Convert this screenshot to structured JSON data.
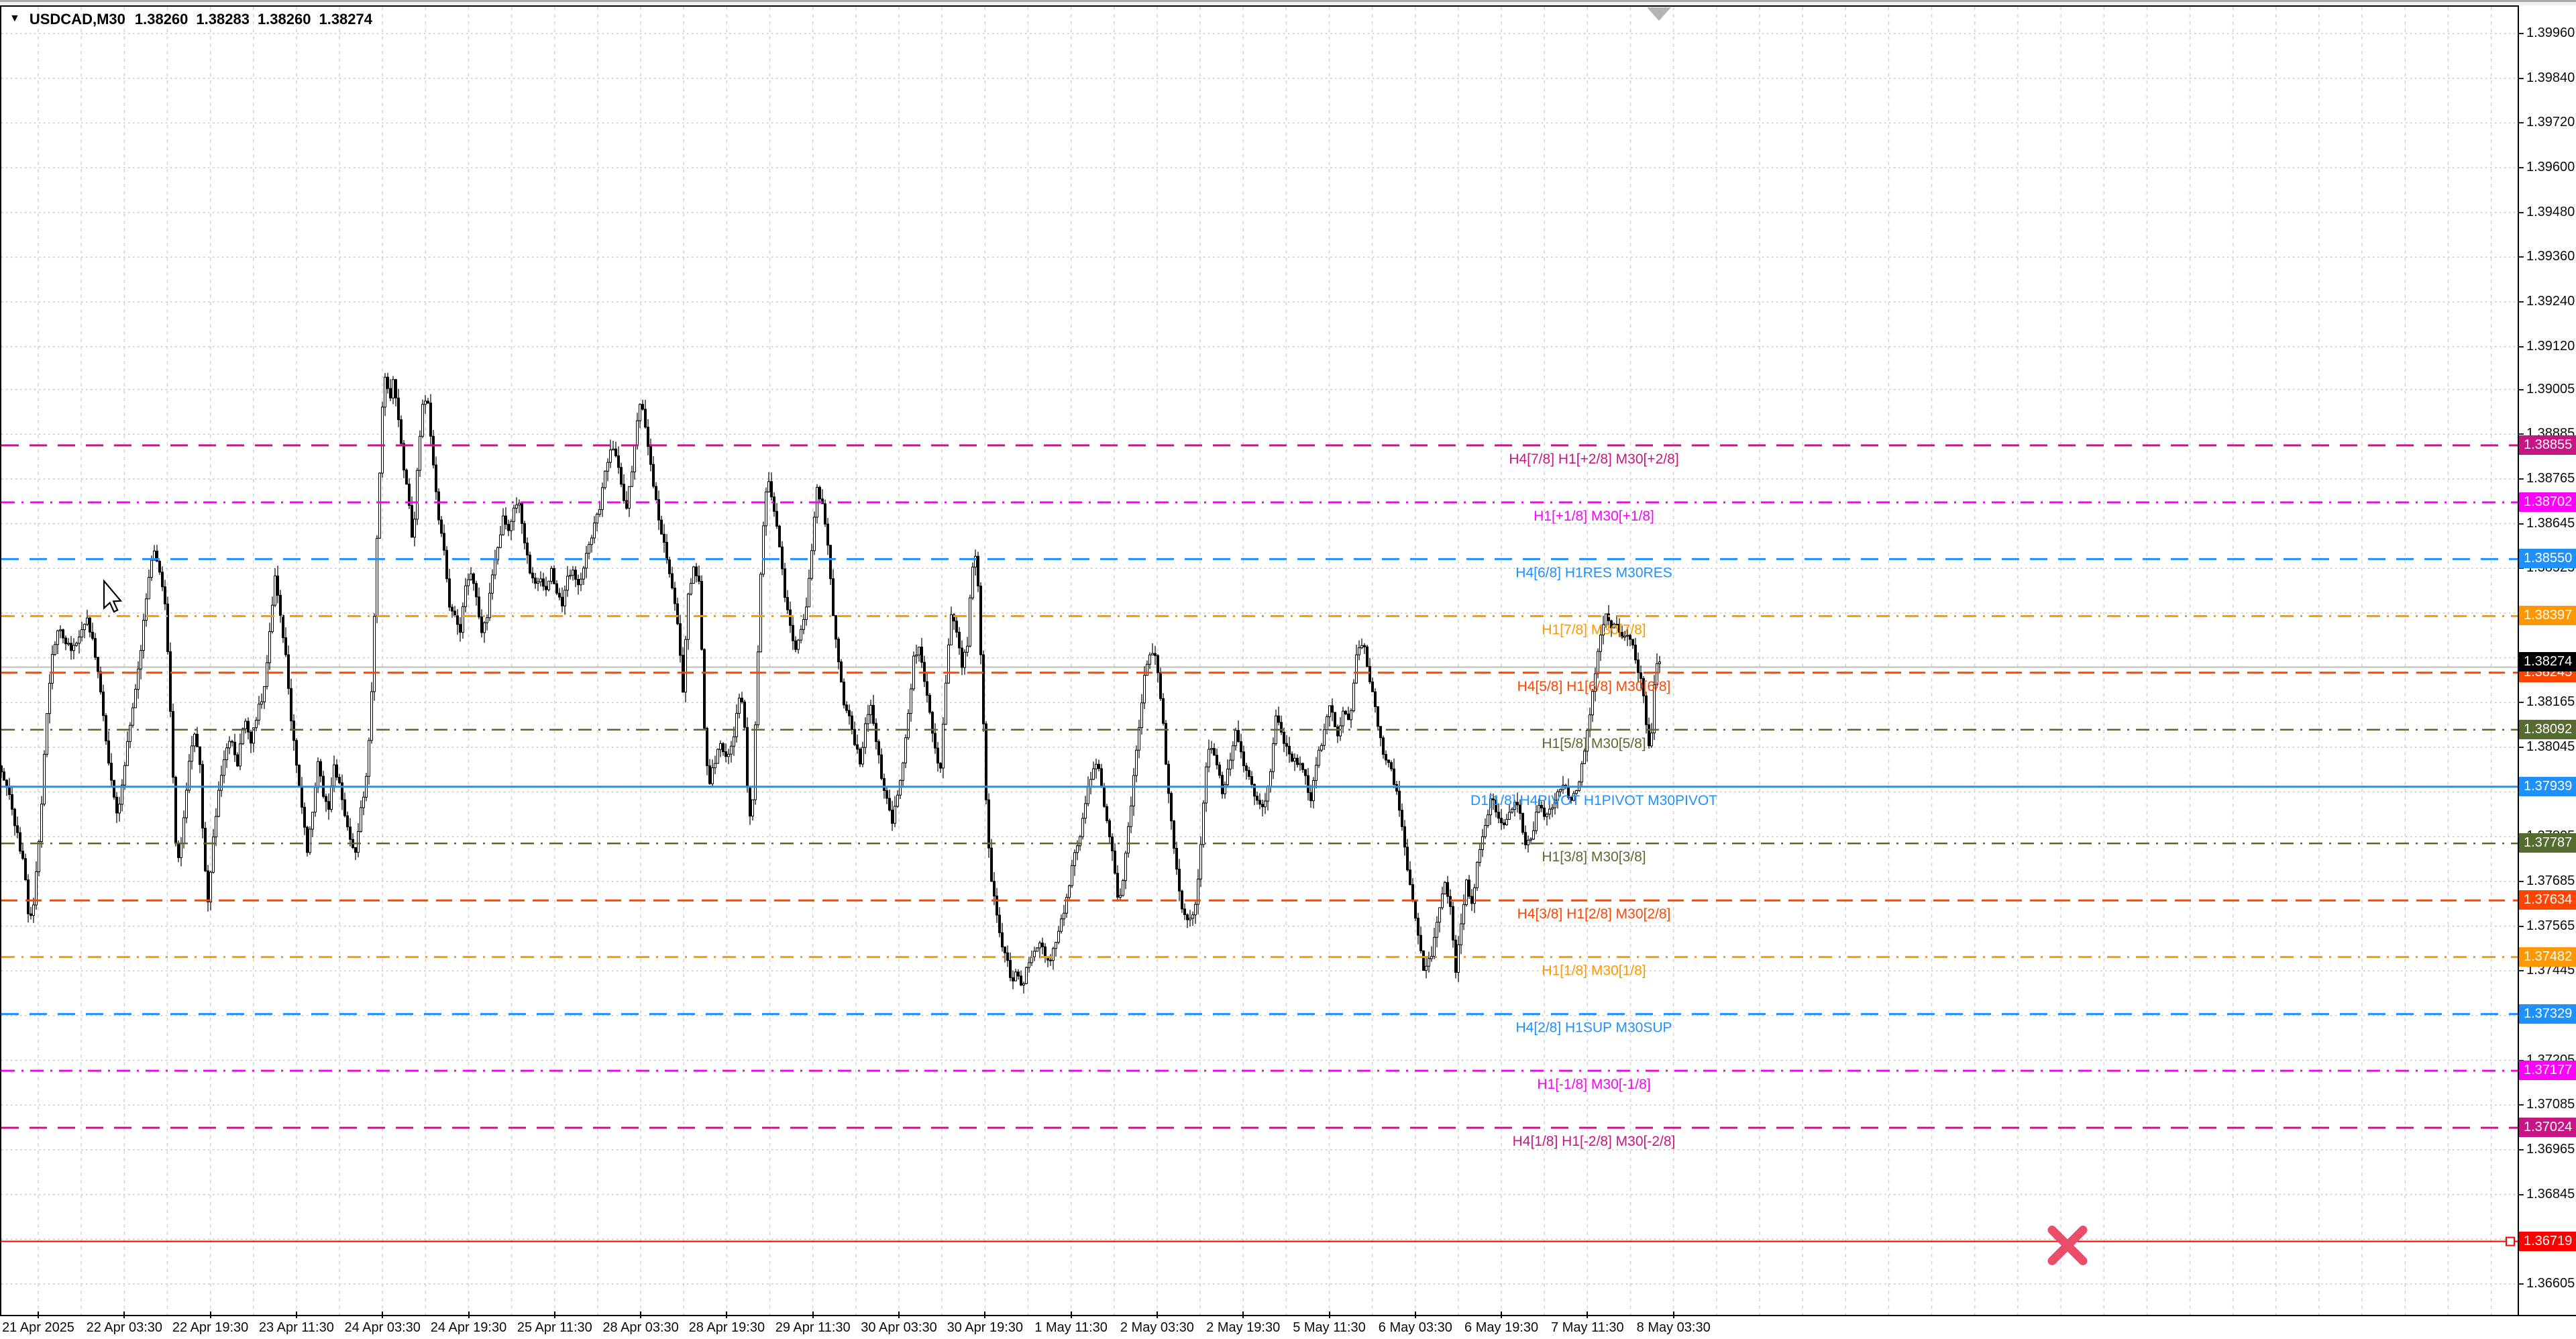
{
  "window": {
    "app": "MetaTrader chart",
    "background": "#ffffff"
  },
  "title": {
    "dropdown_icon": "▼",
    "symbol": "USDCAD,M30",
    "open": "1.38260",
    "high": "1.38283",
    "low": "1.38260",
    "close": "1.38274"
  },
  "price_axis": {
    "ticks": [
      "1.39960",
      "1.39840",
      "1.39720",
      "1.39600",
      "1.39480",
      "1.39360",
      "1.39240",
      "1.39120",
      "1.39005",
      "1.38885",
      "1.38765",
      "1.38645",
      "1.38525",
      "1.38405",
      "1.38285",
      "1.38165",
      "1.38045",
      "1.37925",
      "1.37805",
      "1.37685",
      "1.37565",
      "1.37445",
      "1.37325",
      "1.37205",
      "1.37085",
      "1.36965",
      "1.36845",
      "1.36725",
      "1.36605"
    ]
  },
  "time_axis": {
    "labels": [
      "21 Apr 2025",
      "22 Apr 03:30",
      "22 Apr 19:30",
      "23 Apr 11:30",
      "24 Apr 03:30",
      "24 Apr 19:30",
      "25 Apr 11:30",
      "28 Apr 03:30",
      "28 Apr 19:30",
      "29 Apr 11:30",
      "30 Apr 03:30",
      "30 Apr 19:30",
      "1 May 11:30",
      "2 May 03:30",
      "2 May 19:30",
      "5 May 11:30",
      "6 May 03:30",
      "6 May 19:30",
      "7 May 11:30",
      "8 May 03:30"
    ]
  },
  "current_price": {
    "value": "1.38274",
    "badge_color": "#000000"
  },
  "bid_line": {
    "price": "1.38260",
    "color": "#bdbdbd"
  },
  "levels": [
    {
      "label": "H4[7/8] H1[+2/8] M30[+2/8]",
      "price": "1.38855",
      "color": "#C71585",
      "style": "longdash",
      "width": 3
    },
    {
      "label": "H1[+1/8] M30[+1/8]",
      "price": "1.38702",
      "color": "#FF00FF",
      "style": "dashdot",
      "width": 3
    },
    {
      "label": "H4[6/8] H1RES M30RES",
      "price": "1.38550",
      "color": "#1E90FF",
      "style": "longdash",
      "width": 3
    },
    {
      "label": "H1[7/8] M30[7/8]",
      "price": "1.38397",
      "color": "#FF9800",
      "style": "dashdot",
      "width": 3
    },
    {
      "label": "H4[5/8] H1[6/8] M30[6/8]",
      "price": "1.38245",
      "color": "#FF4500",
      "style": "dash",
      "width": 3
    },
    {
      "label": "H1[5/8] M30[5/8]",
      "price": "1.38092",
      "color": "#556B2F",
      "style": "dashdot",
      "width": 2.5
    },
    {
      "label": "D1[1/8] H4PIVOT H1PIVOT M30PIVOT",
      "price": "1.37939",
      "color": "#1E90FF",
      "style": "solid",
      "width": 3
    },
    {
      "label": "H1[3/8] M30[3/8]",
      "price": "1.37787",
      "color": "#556B2F",
      "style": "dashdot",
      "width": 2.5
    },
    {
      "label": "H4[3/8] H1[2/8] M30[2/8]",
      "price": "1.37634",
      "color": "#FF4500",
      "style": "dash",
      "width": 3
    },
    {
      "label": "H1[1/8] M30[1/8]",
      "price": "1.37482",
      "color": "#FF9800",
      "style": "dashdot",
      "width": 3
    },
    {
      "label": "H4[2/8] H1SUP M30SUP",
      "price": "1.37329",
      "color": "#1E90FF",
      "style": "longdash",
      "width": 3
    },
    {
      "label": "H1[-1/8] M30[-1/8]",
      "price": "1.37177",
      "color": "#FF00FF",
      "style": "dashdot",
      "width": 3
    },
    {
      "label": "H4[1/8] H1[-2/8] M30[-2/8]",
      "price": "1.37024",
      "color": "#C71585",
      "style": "longdash",
      "width": 3
    }
  ],
  "sell_stop_line": {
    "price": "1.36719",
    "color": "#FF0000",
    "style": "solid",
    "width": 2,
    "handle": true,
    "marker": "cross",
    "marker_color": "#E94D67"
  },
  "shift_triangle": {
    "color": "#b4b4b4"
  },
  "colors": {
    "candle_up_fill": "#ffffff",
    "candle_down_fill": "#000000",
    "candle_outline": "#000000",
    "grid_h": "#c8c8c8",
    "grid_v": "#d4d4d4",
    "axis_text": "#0a0a0a",
    "frame": "#000000"
  },
  "chart_data": {
    "type": "candlestick",
    "symbol": "USDCAD",
    "timeframe": "M30",
    "title": "USDCAD,M30",
    "last_ohlc": {
      "open": 1.3826,
      "high": 1.38283,
      "low": 1.3826,
      "close": 1.38274
    },
    "x_range": [
      "21 Apr 2025",
      "8 May 03:30"
    ],
    "y_visible_range": [
      1.36478,
      1.4005
    ],
    "grid": true,
    "levels_prices": [
      1.38855,
      1.38702,
      1.3855,
      1.38397,
      1.38245,
      1.38092,
      1.37939,
      1.37787,
      1.37634,
      1.37482,
      1.37329,
      1.37177,
      1.37024,
      1.36719
    ],
    "price_path_anchors": [
      [
        2,
        1.37995
      ],
      [
        12,
        1.3794
      ],
      [
        22,
        1.3786
      ],
      [
        30,
        1.3779
      ],
      [
        38,
        1.3772
      ],
      [
        46,
        1.3757
      ],
      [
        52,
        1.3762
      ],
      [
        58,
        1.3775
      ],
      [
        64,
        1.379
      ],
      [
        72,
        1.3814
      ],
      [
        80,
        1.383
      ],
      [
        90,
        1.3836
      ],
      [
        100,
        1.3833
      ],
      [
        110,
        1.38305
      ],
      [
        120,
        1.3834
      ],
      [
        130,
        1.38395
      ],
      [
        140,
        1.3833
      ],
      [
        150,
        1.3823
      ],
      [
        160,
        1.3806
      ],
      [
        170,
        1.3792
      ],
      [
        178,
        1.3785
      ],
      [
        186,
        1.3798
      ],
      [
        194,
        1.3808
      ],
      [
        202,
        1.3817
      ],
      [
        212,
        1.383
      ],
      [
        222,
        1.3849
      ],
      [
        232,
        1.3857
      ],
      [
        242,
        1.3851
      ],
      [
        250,
        1.3839
      ],
      [
        257,
        1.3809
      ],
      [
        264,
        1.3779
      ],
      [
        270,
        1.3774
      ],
      [
        277,
        1.3788
      ],
      [
        285,
        1.3802
      ],
      [
        293,
        1.3808
      ],
      [
        300,
        1.38
      ],
      [
        306,
        1.3775
      ],
      [
        312,
        1.3763
      ],
      [
        318,
        1.3776
      ],
      [
        326,
        1.379
      ],
      [
        336,
        1.3801
      ],
      [
        346,
        1.3808
      ],
      [
        356,
        1.38
      ],
      [
        366,
        1.3812
      ],
      [
        376,
        1.3806
      ],
      [
        386,
        1.3814
      ],
      [
        396,
        1.382
      ],
      [
        404,
        1.3836
      ],
      [
        412,
        1.3851
      ],
      [
        420,
        1.384
      ],
      [
        428,
        1.3829
      ],
      [
        436,
        1.3812
      ],
      [
        444,
        1.38
      ],
      [
        452,
        1.3788
      ],
      [
        460,
        1.3777
      ],
      [
        468,
        1.3788
      ],
      [
        476,
        1.38
      ],
      [
        484,
        1.3792
      ],
      [
        492,
        1.3788
      ],
      [
        500,
        1.38
      ],
      [
        508,
        1.3794
      ],
      [
        516,
        1.3786
      ],
      [
        524,
        1.3779
      ],
      [
        532,
        1.3777
      ],
      [
        540,
        1.3788
      ],
      [
        548,
        1.3796
      ],
      [
        554,
        1.381
      ],
      [
        560,
        1.384
      ],
      [
        566,
        1.387
      ],
      [
        572,
        1.3895
      ],
      [
        577,
        1.3905
      ],
      [
        583,
        1.3898
      ],
      [
        589,
        1.3903
      ],
      [
        595,
        1.3895
      ],
      [
        602,
        1.3882
      ],
      [
        610,
        1.3873
      ],
      [
        618,
        1.3858
      ],
      [
        626,
        1.3885
      ],
      [
        633,
        1.3898
      ],
      [
        640,
        1.3896
      ],
      [
        648,
        1.388
      ],
      [
        656,
        1.3865
      ],
      [
        664,
        1.3858
      ],
      [
        672,
        1.3842
      ],
      [
        680,
        1.384
      ],
      [
        688,
        1.3836
      ],
      [
        696,
        1.3848
      ],
      [
        704,
        1.3852
      ],
      [
        712,
        1.3844
      ],
      [
        720,
        1.3836
      ],
      [
        728,
        1.384
      ],
      [
        736,
        1.385
      ],
      [
        744,
        1.3858
      ],
      [
        752,
        1.3866
      ],
      [
        760,
        1.3862
      ],
      [
        768,
        1.3868
      ],
      [
        776,
        1.387
      ],
      [
        784,
        1.386
      ],
      [
        792,
        1.3852
      ],
      [
        800,
        1.3848
      ],
      [
        808,
        1.385
      ],
      [
        816,
        1.3846
      ],
      [
        824,
        1.3852
      ],
      [
        832,
        1.3846
      ],
      [
        840,
        1.3842
      ],
      [
        848,
        1.385
      ],
      [
        856,
        1.3852
      ],
      [
        865,
        1.3848
      ],
      [
        875,
        1.3855
      ],
      [
        885,
        1.3862
      ],
      [
        895,
        1.3868
      ],
      [
        905,
        1.388
      ],
      [
        915,
        1.3886
      ],
      [
        925,
        1.3878
      ],
      [
        935,
        1.3868
      ],
      [
        945,
        1.388
      ],
      [
        952,
        1.3892
      ],
      [
        958,
        1.3898
      ],
      [
        965,
        1.389
      ],
      [
        972,
        1.388
      ],
      [
        980,
        1.387
      ],
      [
        988,
        1.3862
      ],
      [
        996,
        1.3855
      ],
      [
        1004,
        1.3848
      ],
      [
        1012,
        1.3838
      ],
      [
        1020,
        1.382
      ],
      [
        1028,
        1.3846
      ],
      [
        1036,
        1.3852
      ],
      [
        1044,
        1.385
      ],
      [
        1052,
        1.381
      ],
      [
        1058,
        1.3793
      ],
      [
        1066,
        1.38
      ],
      [
        1076,
        1.3805
      ],
      [
        1086,
        1.3802
      ],
      [
        1096,
        1.3808
      ],
      [
        1106,
        1.382
      ],
      [
        1112,
        1.381
      ],
      [
        1118,
        1.3785
      ],
      [
        1124,
        1.379
      ],
      [
        1130,
        1.382
      ],
      [
        1136,
        1.385
      ],
      [
        1142,
        1.3872
      ],
      [
        1148,
        1.3875
      ],
      [
        1156,
        1.3868
      ],
      [
        1164,
        1.3858
      ],
      [
        1172,
        1.3845
      ],
      [
        1180,
        1.3838
      ],
      [
        1188,
        1.383
      ],
      [
        1196,
        1.3836
      ],
      [
        1204,
        1.3842
      ],
      [
        1212,
        1.3858
      ],
      [
        1220,
        1.3874
      ],
      [
        1228,
        1.387
      ],
      [
        1236,
        1.3858
      ],
      [
        1244,
        1.384
      ],
      [
        1252,
        1.3828
      ],
      [
        1260,
        1.3816
      ],
      [
        1268,
        1.3812
      ],
      [
        1276,
        1.3806
      ],
      [
        1284,
        1.38
      ],
      [
        1292,
        1.381
      ],
      [
        1300,
        1.3816
      ],
      [
        1308,
        1.3806
      ],
      [
        1316,
        1.3797
      ],
      [
        1324,
        1.379
      ],
      [
        1332,
        1.3784
      ],
      [
        1340,
        1.3792
      ],
      [
        1348,
        1.38
      ],
      [
        1356,
        1.3814
      ],
      [
        1364,
        1.3828
      ],
      [
        1372,
        1.3832
      ],
      [
        1380,
        1.3822
      ],
      [
        1388,
        1.3814
      ],
      [
        1396,
        1.3804
      ],
      [
        1404,
        1.3798
      ],
      [
        1412,
        1.3822
      ],
      [
        1420,
        1.384
      ],
      [
        1428,
        1.3836
      ],
      [
        1436,
        1.3826
      ],
      [
        1444,
        1.3832
      ],
      [
        1450,
        1.385
      ],
      [
        1455,
        1.3858
      ],
      [
        1460,
        1.3848
      ],
      [
        1466,
        1.382
      ],
      [
        1472,
        1.379
      ],
      [
        1478,
        1.3772
      ],
      [
        1486,
        1.3762
      ],
      [
        1494,
        1.3752
      ],
      [
        1502,
        1.3748
      ],
      [
        1510,
        1.3742
      ],
      [
        1518,
        1.3744
      ],
      [
        1526,
        1.374
      ],
      [
        1534,
        1.3746
      ],
      [
        1542,
        1.3748
      ],
      [
        1550,
        1.3752
      ],
      [
        1558,
        1.375
      ],
      [
        1566,
        1.3746
      ],
      [
        1574,
        1.3752
      ],
      [
        1582,
        1.3756
      ],
      [
        1590,
        1.3762
      ],
      [
        1598,
        1.377
      ],
      [
        1606,
        1.3778
      ],
      [
        1614,
        1.3782
      ],
      [
        1622,
        1.3792
      ],
      [
        1630,
        1.3798
      ],
      [
        1638,
        1.38
      ],
      [
        1646,
        1.3792
      ],
      [
        1654,
        1.3782
      ],
      [
        1662,
        1.3774
      ],
      [
        1670,
        1.3762
      ],
      [
        1678,
        1.3772
      ],
      [
        1686,
        1.3786
      ],
      [
        1694,
        1.38
      ],
      [
        1702,
        1.3814
      ],
      [
        1710,
        1.3826
      ],
      [
        1718,
        1.383
      ],
      [
        1726,
        1.3828
      ],
      [
        1734,
        1.3815
      ],
      [
        1742,
        1.3795
      ],
      [
        1750,
        1.378
      ],
      [
        1758,
        1.3768
      ],
      [
        1766,
        1.376
      ],
      [
        1774,
        1.3758
      ],
      [
        1782,
        1.376
      ],
      [
        1790,
        1.3772
      ],
      [
        1798,
        1.3796
      ],
      [
        1806,
        1.3806
      ],
      [
        1815,
        1.3801
      ],
      [
        1825,
        1.3792
      ],
      [
        1835,
        1.3801
      ],
      [
        1845,
        1.381
      ],
      [
        1855,
        1.38
      ],
      [
        1865,
        1.3797
      ],
      [
        1875,
        1.379
      ],
      [
        1885,
        1.3788
      ],
      [
        1895,
        1.3797
      ],
      [
        1905,
        1.3814
      ],
      [
        1915,
        1.3806
      ],
      [
        1925,
        1.3802
      ],
      [
        1935,
        1.38
      ],
      [
        1945,
        1.3799
      ],
      [
        1955,
        1.379
      ],
      [
        1965,
        1.3801
      ],
      [
        1975,
        1.3808
      ],
      [
        1985,
        1.3816
      ],
      [
        1995,
        1.3806
      ],
      [
        2005,
        1.3814
      ],
      [
        2015,
        1.3812
      ],
      [
        2025,
        1.3832
      ],
      [
        2035,
        1.3832
      ],
      [
        2045,
        1.3822
      ],
      [
        2055,
        1.3812
      ],
      [
        2065,
        1.3801
      ],
      [
        2075,
        1.3799
      ],
      [
        2085,
        1.3792
      ],
      [
        2095,
        1.3779
      ],
      [
        2105,
        1.3766
      ],
      [
        2115,
        1.3755
      ],
      [
        2125,
        1.3744
      ],
      [
        2135,
        1.3748
      ],
      [
        2145,
        1.3758
      ],
      [
        2155,
        1.3768
      ],
      [
        2165,
        1.376
      ],
      [
        2172,
        1.3745
      ],
      [
        2180,
        1.3758
      ],
      [
        2188,
        1.3768
      ],
      [
        2196,
        1.3762
      ],
      [
        2205,
        1.3774
      ],
      [
        2215,
        1.3782
      ],
      [
        2225,
        1.3792
      ],
      [
        2235,
        1.3786
      ],
      [
        2245,
        1.3784
      ],
      [
        2255,
        1.3788
      ],
      [
        2265,
        1.379
      ],
      [
        2275,
        1.3778
      ],
      [
        2285,
        1.378
      ],
      [
        2295,
        1.379
      ],
      [
        2305,
        1.3786
      ],
      [
        2315,
        1.3788
      ],
      [
        2325,
        1.3792
      ],
      [
        2335,
        1.3794
      ],
      [
        2345,
        1.379
      ],
      [
        2355,
        1.3795
      ],
      [
        2365,
        1.3805
      ],
      [
        2375,
        1.3818
      ],
      [
        2385,
        1.3832
      ],
      [
        2395,
        1.384
      ],
      [
        2403,
        1.3836
      ],
      [
        2411,
        1.3838
      ],
      [
        2419,
        1.3834
      ],
      [
        2427,
        1.3836
      ],
      [
        2435,
        1.3832
      ],
      [
        2443,
        1.3826
      ],
      [
        2451,
        1.382
      ],
      [
        2457,
        1.3808
      ],
      [
        2462,
        1.3802
      ],
      [
        2467,
        1.382
      ],
      [
        2471,
        1.3828
      ],
      [
        2474,
        1.38274
      ]
    ]
  }
}
